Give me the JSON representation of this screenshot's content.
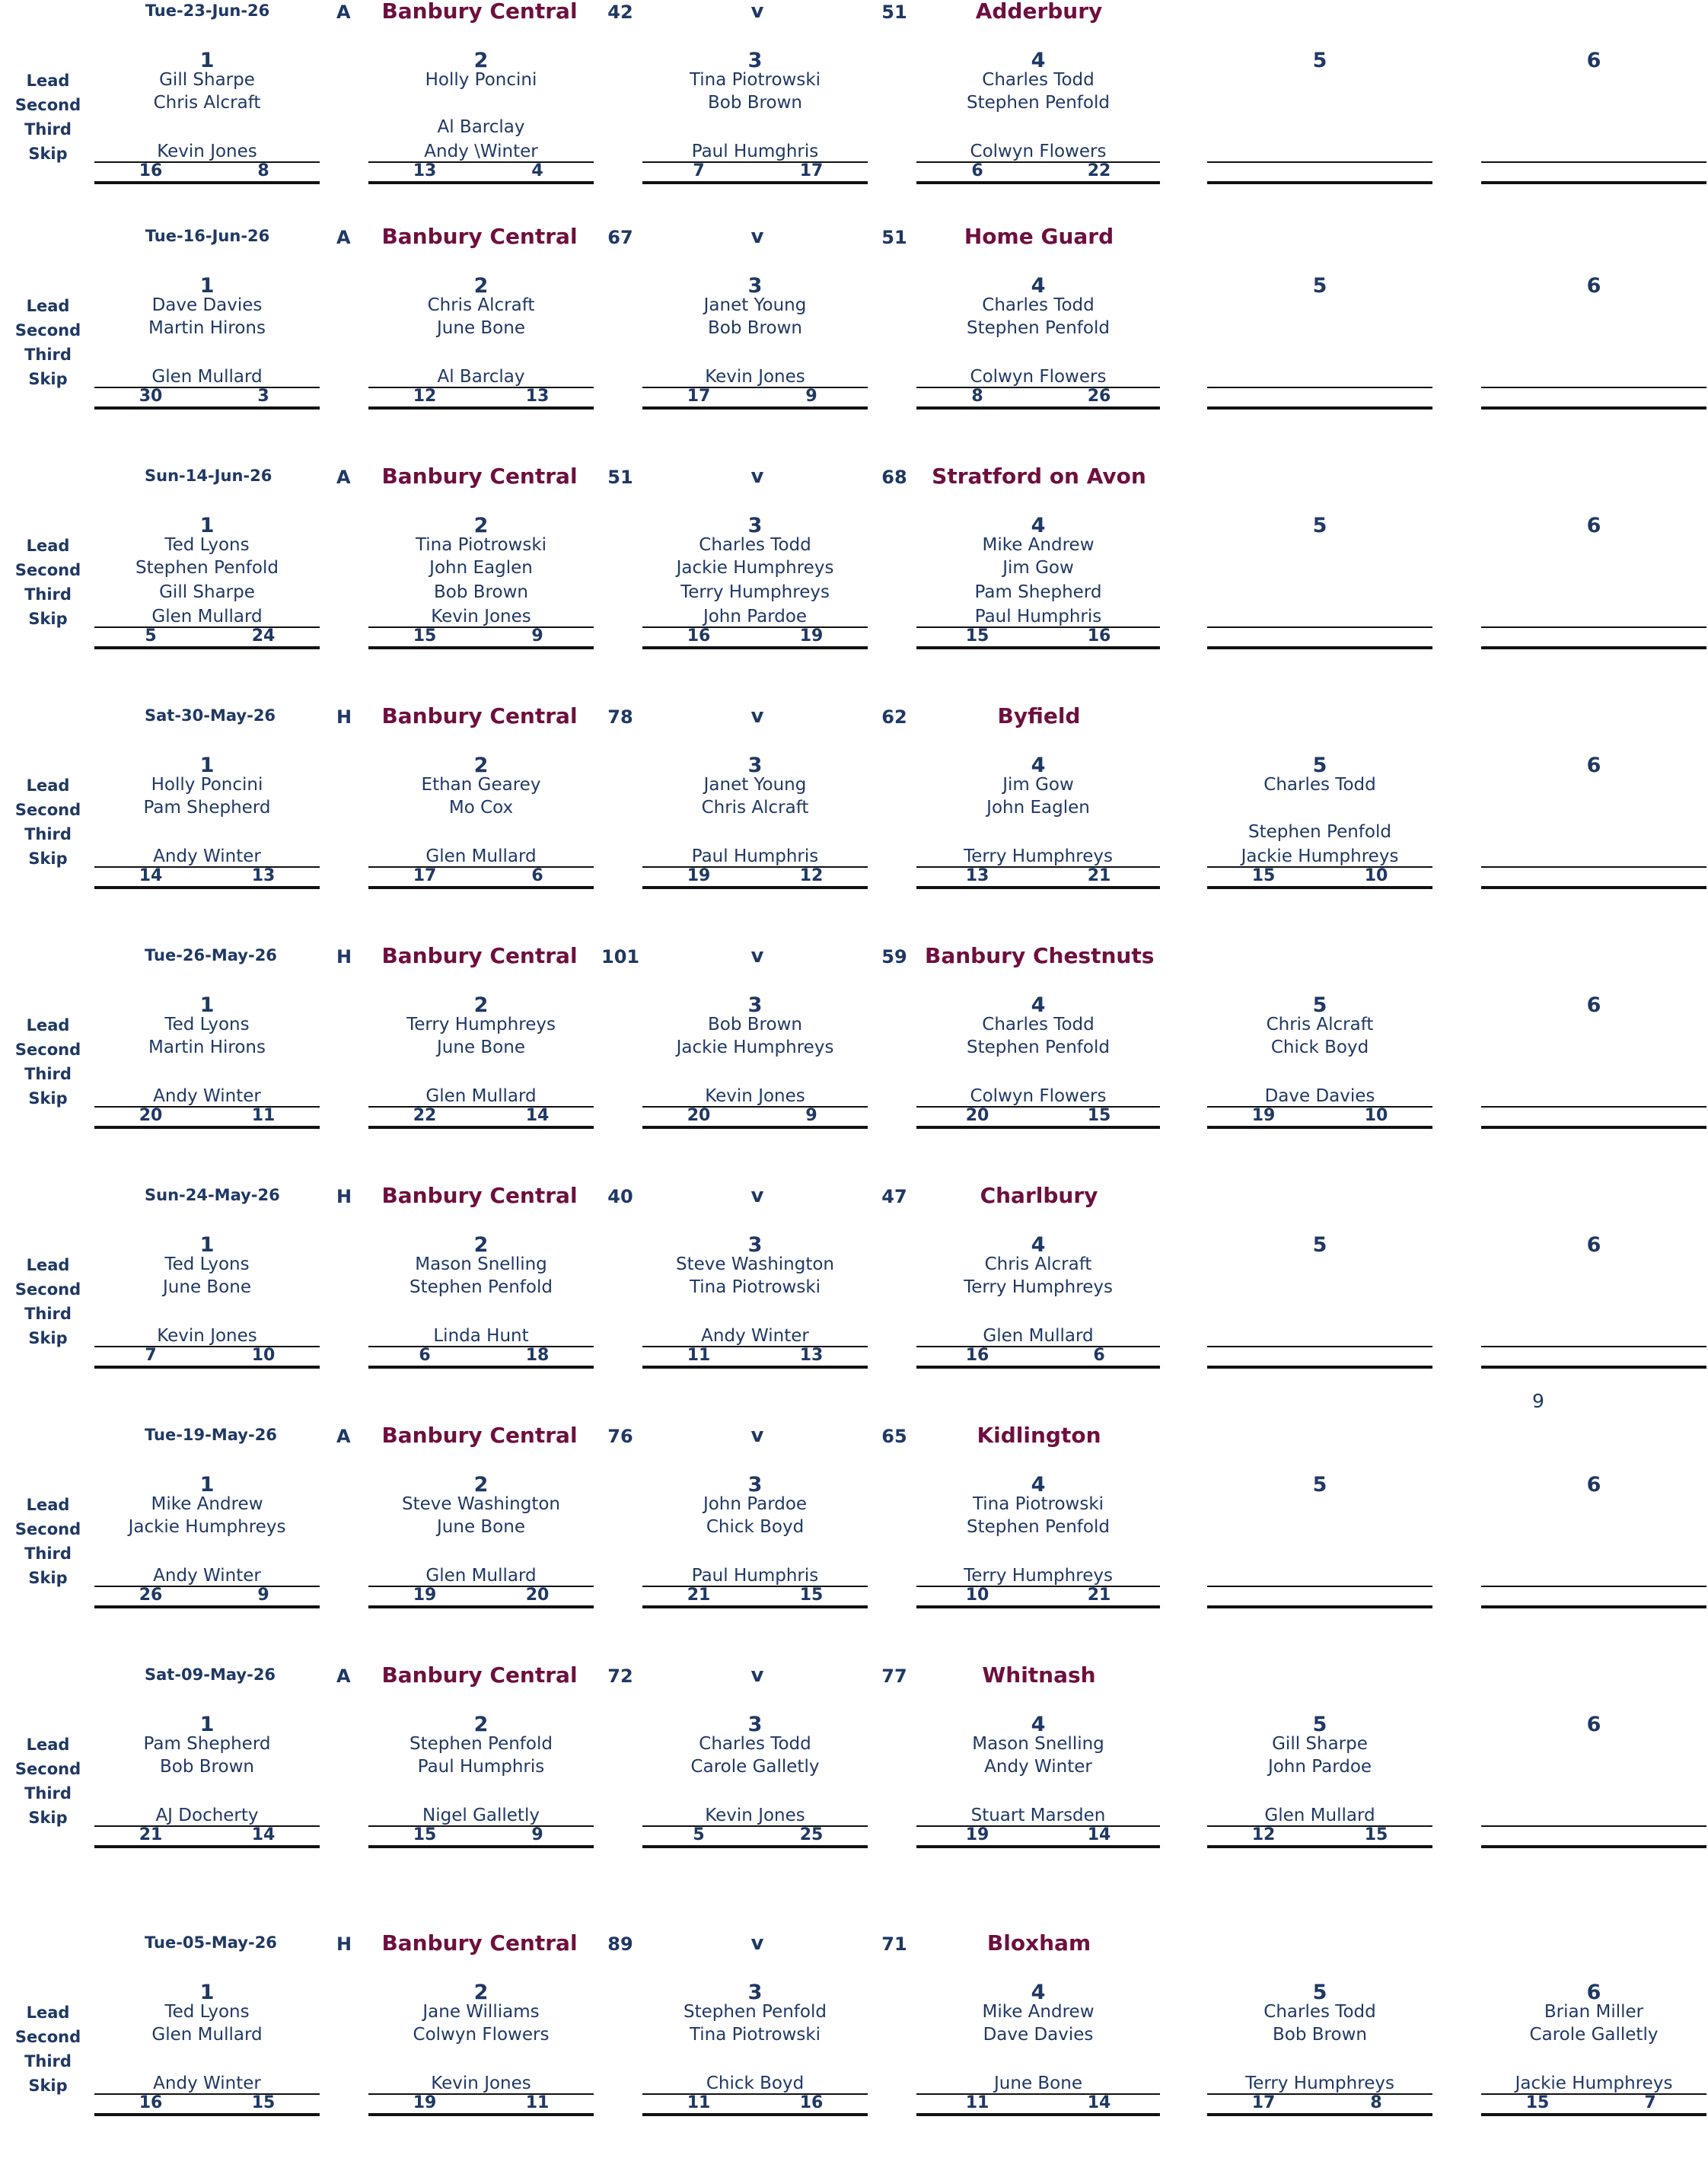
{
  "labels": {
    "positions": [
      "Lead",
      "Second",
      "Third",
      "Skip"
    ],
    "versus": "v"
  },
  "colors": {
    "text": "#1f3864",
    "team": "#6e0f3f",
    "lines": "#111111"
  },
  "stray_value": "9",
  "matches": [
    {
      "date": "Tue-23-Jun-26",
      "venue": "A",
      "home_team": "Banbury Central",
      "home_score": "42",
      "away_score": "51",
      "away_team": "Adderbury",
      "rinks": [
        {
          "number": "1",
          "lead": "Gill Sharpe",
          "second": "Chris Alcraft",
          "third": "",
          "skip": "Kevin Jones",
          "for": "16",
          "against": "8"
        },
        {
          "number": "2",
          "lead": "Holly Poncini",
          "second": "",
          "third": "Al Barclay",
          "skip": "Andy \\Winter",
          "for": "13",
          "against": "4"
        },
        {
          "number": "3",
          "lead": "Tina Piotrowski",
          "second": "Bob Brown",
          "third": "",
          "skip": "Paul Humghris",
          "for": "7",
          "against": "17"
        },
        {
          "number": "4",
          "lead": "Charles Todd",
          "second": "Stephen Penfold",
          "third": "",
          "skip": "Colwyn Flowers",
          "for": "6",
          "against": "22"
        },
        {
          "number": "5",
          "lead": "",
          "second": "",
          "third": "",
          "skip": "",
          "for": "",
          "against": ""
        },
        {
          "number": "6",
          "lead": "",
          "second": "",
          "third": "",
          "skip": "",
          "for": "",
          "against": ""
        }
      ]
    },
    {
      "date": "Tue-16-Jun-26",
      "venue": "A",
      "home_team": "Banbury Central",
      "home_score": "67",
      "away_score": "51",
      "away_team": "Home Guard",
      "rinks": [
        {
          "number": "1",
          "lead": "Dave Davies",
          "second": "Martin Hirons",
          "third": "",
          "skip": "Glen Mullard",
          "for": "30",
          "against": "3"
        },
        {
          "number": "2",
          "lead": "Chris Alcraft",
          "second": "June Bone",
          "third": "",
          "skip": "Al Barclay",
          "for": "12",
          "against": "13"
        },
        {
          "number": "3",
          "lead": "Janet Young",
          "second": "Bob Brown",
          "third": "",
          "skip": "Kevin Jones",
          "for": "17",
          "against": "9"
        },
        {
          "number": "4",
          "lead": "Charles Todd",
          "second": "Stephen Penfold",
          "third": "",
          "skip": "Colwyn Flowers",
          "for": "8",
          "against": "26"
        },
        {
          "number": "5",
          "lead": "",
          "second": "",
          "third": "",
          "skip": "",
          "for": "",
          "against": ""
        },
        {
          "number": "6",
          "lead": "",
          "second": "",
          "third": "",
          "skip": "",
          "for": "",
          "against": ""
        }
      ]
    },
    {
      "date": "Sun-14-Jun-26",
      "venue": "A",
      "home_team": "Banbury Central",
      "home_score": "51",
      "away_score": "68",
      "away_team": "Stratford on Avon",
      "rinks": [
        {
          "number": "1",
          "lead": "Ted Lyons",
          "second": "Stephen Penfold",
          "third": "Gill Sharpe",
          "skip": "Glen Mullard",
          "for": "5",
          "against": "24"
        },
        {
          "number": "2",
          "lead": "Tina Piotrowski",
          "second": "John Eaglen",
          "third": "Bob Brown",
          "skip": "Kevin Jones",
          "for": "15",
          "against": "9"
        },
        {
          "number": "3",
          "lead": "Charles Todd",
          "second": "Jackie Humphreys",
          "third": "Terry Humphreys",
          "skip": "John Pardoe",
          "for": "16",
          "against": "19"
        },
        {
          "number": "4",
          "lead": "Mike Andrew",
          "second": "Jim Gow",
          "third": "Pam Shepherd",
          "skip": "Paul Humphris",
          "for": "15",
          "against": "16"
        },
        {
          "number": "5",
          "lead": "",
          "second": "",
          "third": "",
          "skip": "",
          "for": "",
          "against": ""
        },
        {
          "number": "6",
          "lead": "",
          "second": "",
          "third": "",
          "skip": "",
          "for": "",
          "against": ""
        }
      ]
    },
    {
      "date": "Sat-30-May-26",
      "venue": "H",
      "home_team": "Banbury Central",
      "home_score": "78",
      "away_score": "62",
      "away_team": "Byfield",
      "rinks": [
        {
          "number": "1",
          "lead": "Holly Poncini",
          "second": "Pam Shepherd",
          "third": "",
          "skip": "Andy Winter",
          "for": "14",
          "against": "13"
        },
        {
          "number": "2",
          "lead": "Ethan Gearey",
          "second": "Mo Cox",
          "third": "",
          "skip": "Glen Mullard",
          "for": "17",
          "against": "6"
        },
        {
          "number": "3",
          "lead": "Janet Young",
          "second": "Chris Alcraft",
          "third": "",
          "skip": "Paul Humphris",
          "for": "19",
          "against": "12"
        },
        {
          "number": "4",
          "lead": "Jim Gow",
          "second": "John Eaglen",
          "third": "",
          "skip": "Terry Humphreys",
          "for": "13",
          "against": "21"
        },
        {
          "number": "5",
          "lead": "Charles Todd",
          "second": "",
          "third": "Stephen Penfold",
          "skip": "Jackie Humphreys",
          "for": "15",
          "against": "10"
        },
        {
          "number": "6",
          "lead": "",
          "second": "",
          "third": "",
          "skip": "",
          "for": "",
          "against": ""
        }
      ]
    },
    {
      "date": "Tue-26-May-26",
      "venue": "H",
      "home_team": "Banbury Central",
      "home_score": "101",
      "away_score": "59",
      "away_team": "Banbury Chestnuts",
      "rinks": [
        {
          "number": "1",
          "lead": "Ted Lyons",
          "second": "Martin Hirons",
          "third": "",
          "skip": "Andy Winter",
          "for": "20",
          "against": "11"
        },
        {
          "number": "2",
          "lead": "Terry Humphreys",
          "second": "June Bone",
          "third": "",
          "skip": "Glen Mullard",
          "for": "22",
          "against": "14"
        },
        {
          "number": "3",
          "lead": "Bob Brown",
          "second": "Jackie Humphreys",
          "third": "",
          "skip": "Kevin Jones",
          "for": "20",
          "against": "9"
        },
        {
          "number": "4",
          "lead": "Charles Todd",
          "second": "Stephen Penfold",
          "third": "",
          "skip": "Colwyn Flowers",
          "for": "20",
          "against": "15"
        },
        {
          "number": "5",
          "lead": "Chris Alcraft",
          "second": "Chick Boyd",
          "third": "",
          "skip": "Dave Davies",
          "for": "19",
          "against": "10"
        },
        {
          "number": "6",
          "lead": "",
          "second": "",
          "third": "",
          "skip": "",
          "for": "",
          "against": ""
        }
      ]
    },
    {
      "date": "Sun-24-May-26",
      "venue": "H",
      "home_team": "Banbury Central",
      "home_score": "40",
      "away_score": "47",
      "away_team": "Charlbury",
      "rinks": [
        {
          "number": "1",
          "lead": "Ted Lyons",
          "second": "June Bone",
          "third": "",
          "skip": "Kevin Jones",
          "for": "7",
          "against": "10"
        },
        {
          "number": "2",
          "lead": "Mason Snelling",
          "second": "Stephen Penfold",
          "third": "",
          "skip": "Linda Hunt",
          "for": "6",
          "against": "18"
        },
        {
          "number": "3",
          "lead": "Steve Washington",
          "second": "Tina Piotrowski",
          "third": "",
          "skip": "Andy Winter",
          "for": "11",
          "against": "13"
        },
        {
          "number": "4",
          "lead": "Chris Alcraft",
          "second": "Terry Humphreys",
          "third": "",
          "skip": "Glen Mullard",
          "for": "16",
          "against": "6"
        },
        {
          "number": "5",
          "lead": "",
          "second": "",
          "third": "",
          "skip": "",
          "for": "",
          "against": ""
        },
        {
          "number": "6",
          "lead": "",
          "second": "",
          "third": "",
          "skip": "",
          "for": "",
          "against": ""
        }
      ]
    },
    {
      "date": "Tue-19-May-26",
      "venue": "A",
      "home_team": "Banbury Central",
      "home_score": "76",
      "away_score": "65",
      "away_team": "Kidlington",
      "rinks": [
        {
          "number": "1",
          "lead": "Mike Andrew",
          "second": "Jackie Humphreys",
          "third": "",
          "skip": "Andy Winter",
          "for": "26",
          "against": "9"
        },
        {
          "number": "2",
          "lead": "Steve Washington",
          "second": "June Bone",
          "third": "",
          "skip": "Glen Mullard",
          "for": "19",
          "against": "20"
        },
        {
          "number": "3",
          "lead": "John Pardoe",
          "second": "Chick Boyd",
          "third": "",
          "skip": "Paul Humphris",
          "for": "21",
          "against": "15"
        },
        {
          "number": "4",
          "lead": "Tina Piotrowski",
          "second": "Stephen Penfold",
          "third": "",
          "skip": "Terry Humphreys",
          "for": "10",
          "against": "21"
        },
        {
          "number": "5",
          "lead": "",
          "second": "",
          "third": "",
          "skip": "",
          "for": "",
          "against": ""
        },
        {
          "number": "6",
          "lead": "",
          "second": "",
          "third": "",
          "skip": "",
          "for": "",
          "against": ""
        }
      ]
    },
    {
      "date": "Sat-09-May-26",
      "venue": "A",
      "home_team": "Banbury Central",
      "home_score": "72",
      "away_score": "77",
      "away_team": "Whitnash",
      "rinks": [
        {
          "number": "1",
          "lead": "Pam Shepherd",
          "second": "Bob Brown",
          "third": "",
          "skip": "AJ Docherty",
          "for": "21",
          "against": "14"
        },
        {
          "number": "2",
          "lead": "Stephen Penfold",
          "second": "Paul Humphris",
          "third": "",
          "skip": "Nigel Galletly",
          "for": "15",
          "against": "9"
        },
        {
          "number": "3",
          "lead": "Charles Todd",
          "second": "Carole Galletly",
          "third": "",
          "skip": "Kevin Jones",
          "for": "5",
          "against": "25"
        },
        {
          "number": "4",
          "lead": "Mason Snelling",
          "second": "Andy Winter",
          "third": "",
          "skip": "Stuart Marsden",
          "for": "19",
          "against": "14"
        },
        {
          "number": "5",
          "lead": "Gill Sharpe",
          "second": "John Pardoe",
          "third": "",
          "skip": "Glen Mullard",
          "for": "12",
          "against": "15"
        },
        {
          "number": "6",
          "lead": "",
          "second": "",
          "third": "",
          "skip": "",
          "for": "",
          "against": ""
        }
      ]
    },
    {
      "date": "Tue-05-May-26",
      "venue": "H",
      "home_team": "Banbury Central",
      "home_score": "89",
      "away_score": "71",
      "away_team": "Bloxham",
      "rinks": [
        {
          "number": "1",
          "lead": "Ted Lyons",
          "second": "Glen Mullard",
          "third": "",
          "skip": "Andy Winter",
          "for": "16",
          "against": "15"
        },
        {
          "number": "2",
          "lead": "Jane Williams",
          "second": "Colwyn Flowers",
          "third": "",
          "skip": "Kevin Jones",
          "for": "19",
          "against": "11"
        },
        {
          "number": "3",
          "lead": "Stephen Penfold",
          "second": "Tina Piotrowski",
          "third": "",
          "skip": "Chick Boyd",
          "for": "11",
          "against": "16"
        },
        {
          "number": "4",
          "lead": "Mike Andrew",
          "second": "Dave Davies",
          "third": "",
          "skip": "June Bone",
          "for": "11",
          "against": "14"
        },
        {
          "number": "5",
          "lead": "Charles Todd",
          "second": "Bob Brown",
          "third": "",
          "skip": "Terry Humphreys",
          "for": "17",
          "against": "8"
        },
        {
          "number": "6",
          "lead": "Brian Miller",
          "second": "Carole Galletly",
          "third": "",
          "skip": "Jackie Humphreys",
          "for": "15",
          "against": "7"
        }
      ]
    }
  ]
}
